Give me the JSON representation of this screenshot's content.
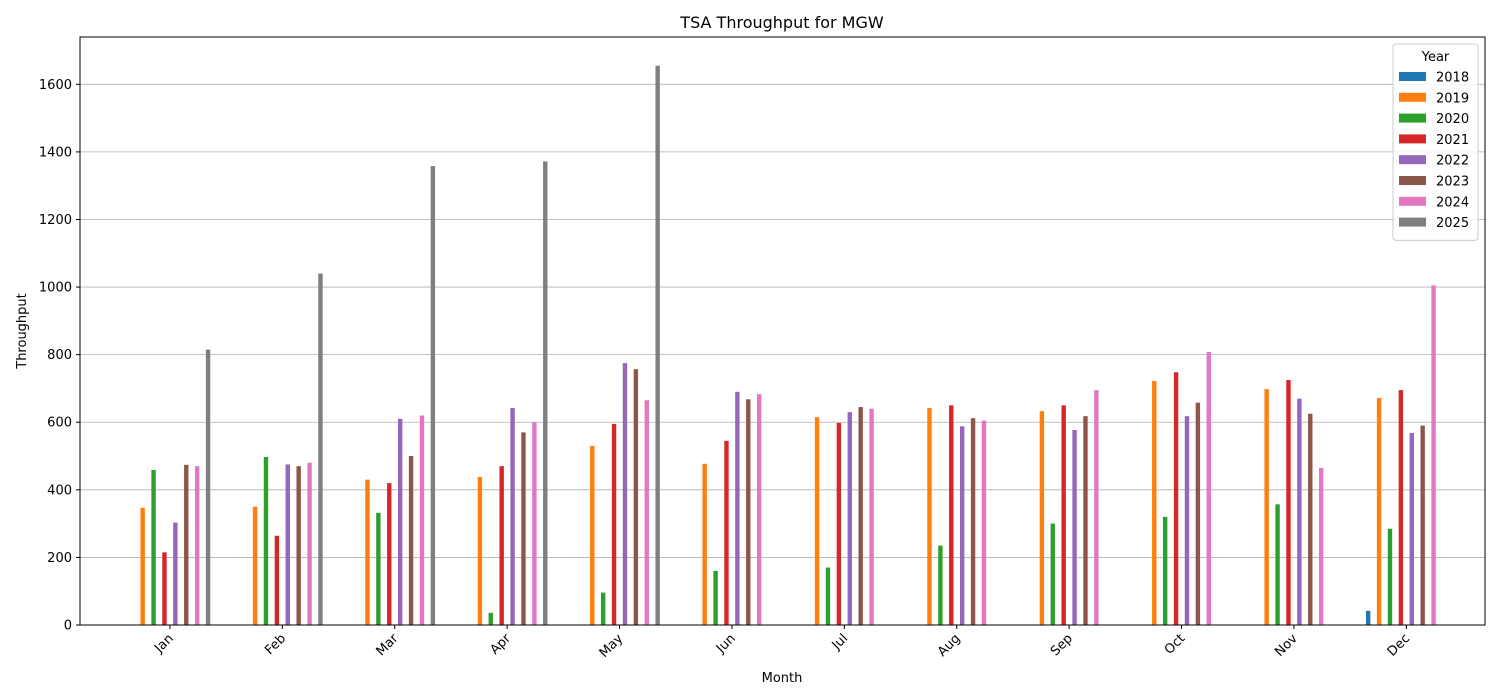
{
  "chart_data": {
    "type": "bar",
    "title": "TSA Throughput for MGW",
    "xlabel": "Month",
    "ylabel": "Throughput",
    "ylim": [
      0,
      1740
    ],
    "yticks": [
      0,
      200,
      400,
      600,
      800,
      1000,
      1200,
      1400,
      1600
    ],
    "grid": "y",
    "legend": {
      "title": "Year",
      "placement": "top-right"
    },
    "categories": [
      "Jan",
      "Feb",
      "Mar",
      "Apr",
      "May",
      "Jun",
      "Jul",
      "Aug",
      "Sep",
      "Oct",
      "Nov",
      "Dec"
    ],
    "series": [
      {
        "name": "2018",
        "color": "#1f77b4",
        "values": [
          null,
          null,
          null,
          null,
          null,
          null,
          null,
          null,
          null,
          null,
          null,
          42
        ]
      },
      {
        "name": "2019",
        "color": "#ff7f0e",
        "values": [
          347,
          350,
          430,
          438,
          530,
          477,
          615,
          642,
          633,
          722,
          698,
          672
        ]
      },
      {
        "name": "2020",
        "color": "#2ca02c",
        "values": [
          459,
          497,
          332,
          36,
          96,
          160,
          170,
          235,
          300,
          320,
          357,
          285
        ]
      },
      {
        "name": "2021",
        "color": "#d62728",
        "values": [
          215,
          264,
          420,
          470,
          595,
          545,
          598,
          650,
          650,
          748,
          725,
          695
        ]
      },
      {
        "name": "2022",
        "color": "#9467bd",
        "values": [
          303,
          475,
          610,
          642,
          775,
          690,
          630,
          588,
          577,
          618,
          670,
          568
        ]
      },
      {
        "name": "2023",
        "color": "#8c564b",
        "values": [
          474,
          470,
          500,
          570,
          757,
          668,
          645,
          612,
          618,
          658,
          625,
          590
        ]
      },
      {
        "name": "2024",
        "color": "#e377c2",
        "values": [
          470,
          480,
          620,
          600,
          665,
          683,
          640,
          605,
          695,
          808,
          465,
          1005
        ]
      },
      {
        "name": "2025",
        "color": "#7f7f7f",
        "values": [
          815,
          1040,
          1358,
          1372,
          1655,
          null,
          null,
          null,
          null,
          null,
          null,
          null
        ]
      }
    ]
  }
}
